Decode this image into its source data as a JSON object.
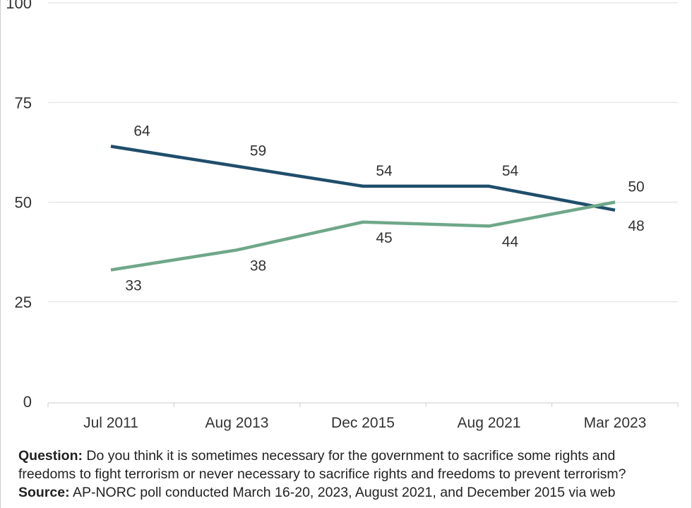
{
  "chart_data": {
    "type": "line",
    "categories": [
      "Jul 2011",
      "Aug 2013",
      "Dec 2015",
      "Aug 2021",
      "Mar 2023"
    ],
    "series": [
      {
        "values": [
          64,
          59,
          54,
          54,
          48
        ],
        "color": "#1f4e6b"
      },
      {
        "values": [
          33,
          38,
          45,
          44,
          50
        ],
        "color": "#6fa78a"
      }
    ],
    "ylim": [
      0,
      100
    ],
    "yticks": [
      0,
      25,
      50,
      75,
      100
    ],
    "grid": true,
    "gridline_color": "#dddddd"
  },
  "footnote": {
    "question_label": "Question:",
    "question_text": " Do you think it is sometimes necessary for the government to sacrifice some rights and freedoms to fight terrorism or never necessary to sacrifice rights and freedoms to prevent terrorism?",
    "source_label": "Source:",
    "source_text": " AP-NORC poll conducted March 16-20, 2023, August 2021, and December 2015 via web"
  }
}
